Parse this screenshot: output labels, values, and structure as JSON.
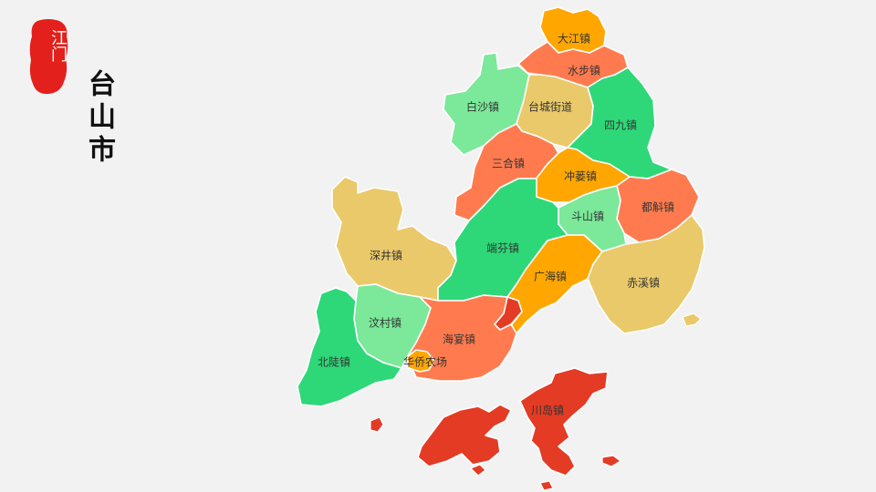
{
  "stamp": {
    "text": "江门",
    "color": "#e3201b"
  },
  "title": "台山市",
  "map": {
    "regions": [
      {
        "name": "大江镇",
        "color": "#ffa600"
      },
      {
        "name": "水步镇",
        "color": "#ff7b4f"
      },
      {
        "name": "白沙镇",
        "color": "#7be89a"
      },
      {
        "name": "台城街道",
        "color": "#eac96a"
      },
      {
        "name": "四九镇",
        "color": "#2ed878"
      },
      {
        "name": "三合镇",
        "color": "#ff7b4f"
      },
      {
        "name": "冲蒌镇",
        "color": "#ffa600"
      },
      {
        "name": "都斛镇",
        "color": "#ff7b4f"
      },
      {
        "name": "斗山镇",
        "color": "#7be89a"
      },
      {
        "name": "深井镇",
        "color": "#eac96a"
      },
      {
        "name": "端芬镇",
        "color": "#2ed878"
      },
      {
        "name": "广海镇",
        "color": "#ffa600"
      },
      {
        "name": "赤溪镇",
        "color": "#eac96a"
      },
      {
        "name": "汶村镇",
        "color": "#7be89a"
      },
      {
        "name": "海宴镇",
        "color": "#ff7b4f"
      },
      {
        "name": "北陡镇",
        "color": "#2ed878"
      },
      {
        "name": "华侨农场",
        "color": "#ffa600"
      },
      {
        "name": "川岛镇",
        "color": "#e33b24"
      }
    ]
  }
}
